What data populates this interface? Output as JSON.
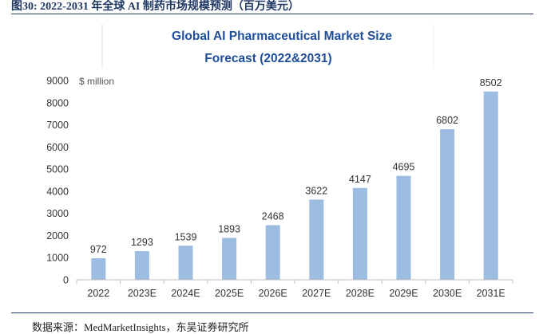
{
  "caption": "图30:  2022-2031 年全球 AI 制药市场规模预测（百万美元）",
  "source": "数据来源：MedMarketInsights，东吴证券研究所",
  "colors": {
    "bar": "#9dbce2",
    "title": "#1f4e9b",
    "caption": "#1f3864"
  },
  "chart_data": {
    "type": "bar",
    "title_lines": [
      "Global AI Pharmaceutical Market Size",
      "Forecast  (2022&2031)"
    ],
    "unit_label": "$ million",
    "categories": [
      "2022",
      "2023E",
      "2024E",
      "2025E",
      "2026E",
      "2027E",
      "2028E",
      "2029E",
      "2030E",
      "2031E"
    ],
    "values": [
      972,
      1293,
      1539,
      1893,
      2468,
      3622,
      4147,
      4695,
      6802,
      8502
    ],
    "ylim": [
      0,
      9000
    ],
    "yticks": [
      0,
      1000,
      2000,
      3000,
      4000,
      5000,
      6000,
      7000,
      8000,
      9000
    ],
    "gridlines": false,
    "xlabel": "",
    "ylabel": ""
  }
}
